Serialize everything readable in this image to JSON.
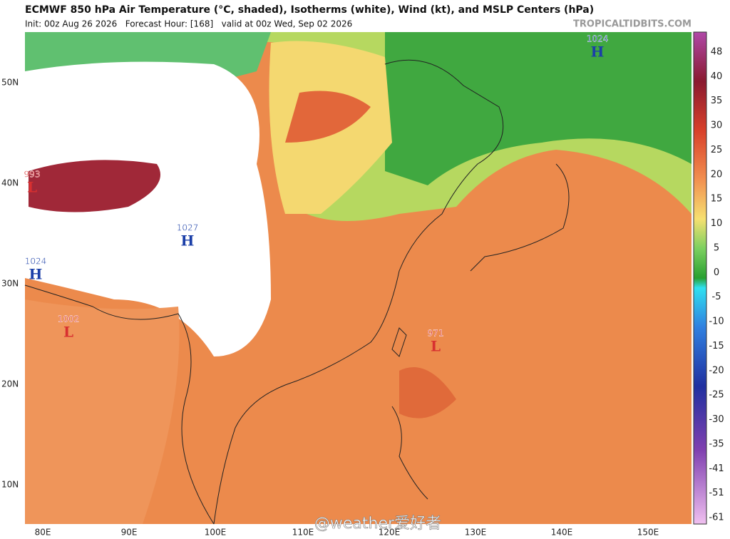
{
  "header": {
    "title": "ECMWF 850 hPa Air Temperature (°C, shaded), Isotherms (white), Wind (kt), and MSLP Centers (hPa)",
    "subtitle": "Init: 00z Aug 26 2026   Forecast Hour: [168]   valid at 00z Wed, Sep 02 2026",
    "source": "TROPICALTIDBITS.COM"
  },
  "map": {
    "lat_labels": [
      "50N",
      "40N",
      "30N",
      "20N",
      "10N"
    ],
    "lon_labels": [
      "80E",
      "90E",
      "100E",
      "110E",
      "120E",
      "130E",
      "140E",
      "150E"
    ],
    "centers": [
      {
        "pressure": "1024",
        "symbol": "H"
      },
      {
        "pressure": "993",
        "symbol": "L"
      },
      {
        "pressure": "1027",
        "symbol": "H"
      },
      {
        "pressure": "1024",
        "symbol": "H"
      },
      {
        "pressure": "1002",
        "symbol": "L"
      },
      {
        "pressure": "971",
        "symbol": "L"
      }
    ]
  },
  "colorbar": {
    "labels": [
      "48",
      "40",
      "35",
      "30",
      "25",
      "20",
      "15",
      "10",
      "5",
      "0",
      "-5",
      "-10",
      "-15",
      "-20",
      "-25",
      "-30",
      "-35",
      "-41",
      "-51",
      "-61"
    ]
  },
  "watermark": "@weather爱好者"
}
